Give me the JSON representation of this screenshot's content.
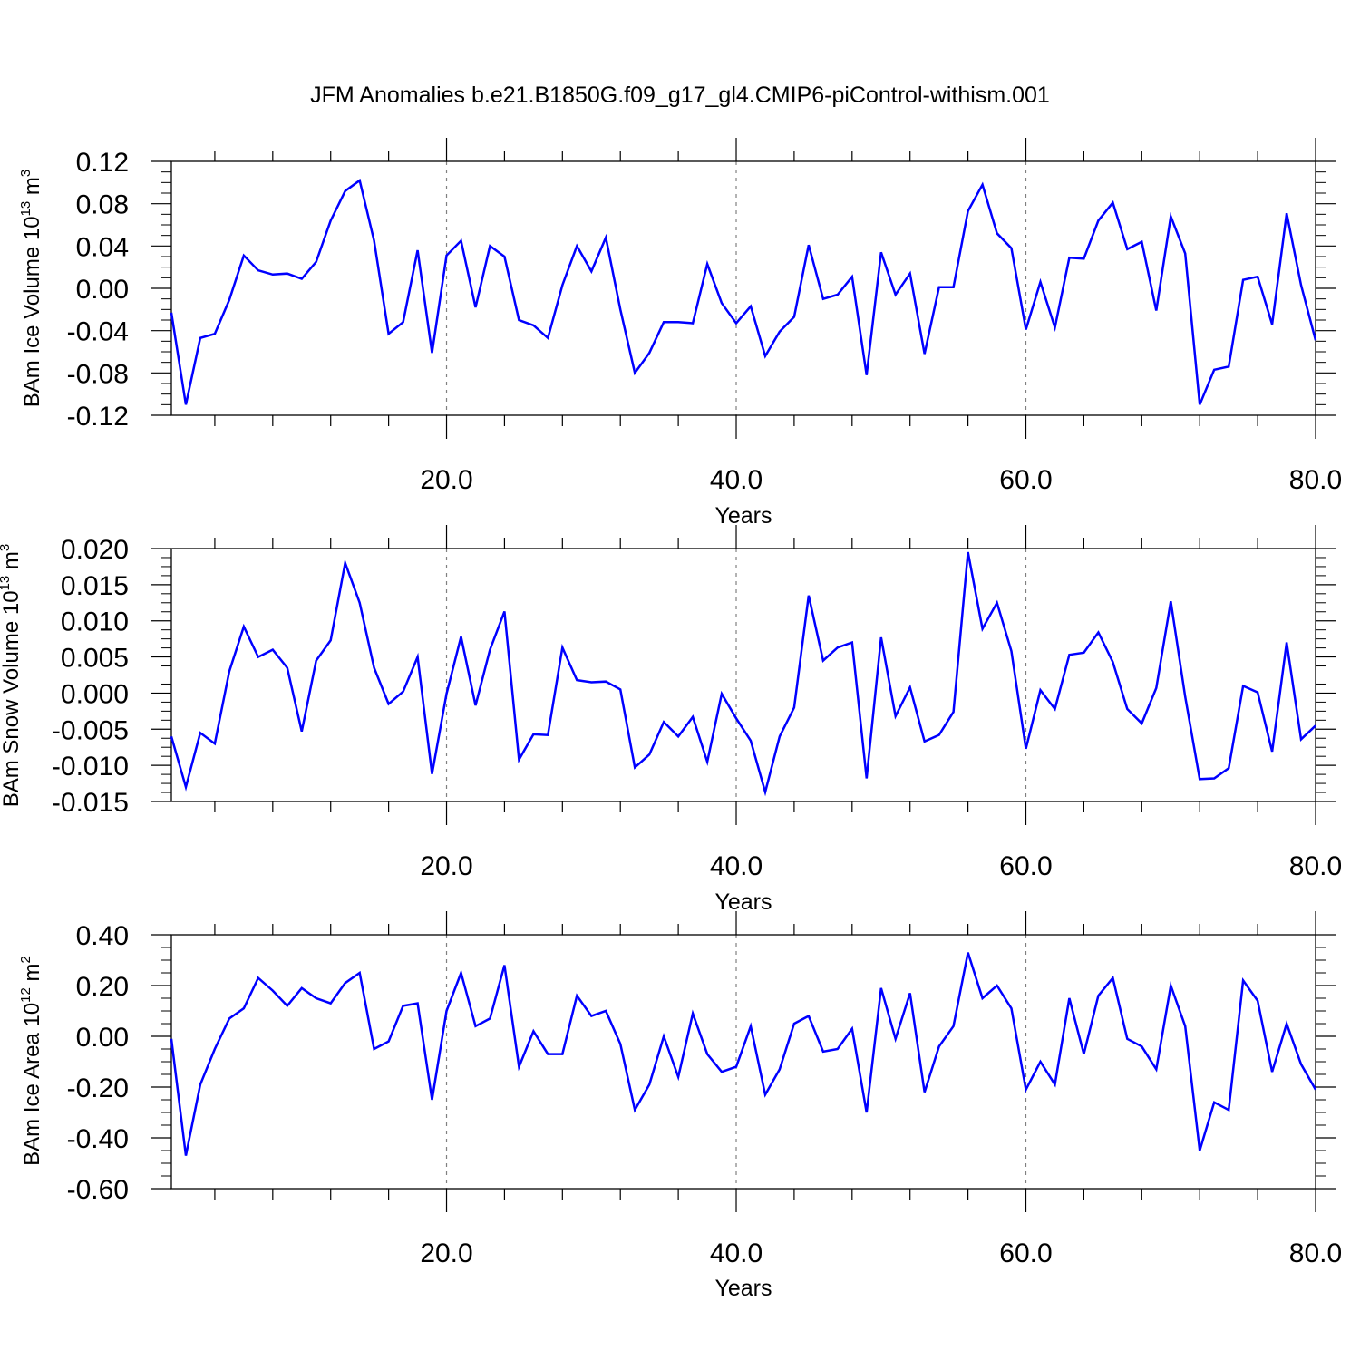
{
  "figure": {
    "title": "JFM Anomalies b.e21.B1850G.f09_g17_gl4.CMIP6-piControl-withism.001"
  },
  "style": {
    "line_color": "#0000ff",
    "axis_color": "#000000",
    "grid_color": "#808080"
  },
  "chart_data": [
    {
      "type": "line",
      "xlabel": "Years",
      "ylabel": {
        "prefix": "BAm Ice Volume 10",
        "exponent": "13",
        "unit": " m",
        "unit_exponent": "3"
      },
      "xlim": [
        1,
        80
      ],
      "ylim": [
        -0.12,
        0.12
      ],
      "xticks": [
        20,
        40,
        60,
        80
      ],
      "xtick_labels": [
        "20.0",
        "40.0",
        "60.0",
        "80.0"
      ],
      "yticks": [
        -0.12,
        -0.08,
        -0.04,
        0,
        0.04,
        0.08,
        0.12
      ],
      "ytick_labels": [
        "-0.12",
        "-0.08",
        "-0.04",
        "0.00",
        "0.04",
        "0.08",
        "0.12"
      ],
      "grid": "dashed vertical lines at major x ticks",
      "series": [
        {
          "x": [
            1,
            2,
            3,
            4,
            5,
            6,
            7,
            8,
            9,
            10,
            11,
            12,
            13,
            14,
            15,
            16,
            17,
            18,
            19,
            20,
            21,
            22,
            23,
            24,
            25,
            26,
            27,
            28,
            29,
            30,
            31,
            32,
            33,
            34,
            35,
            36,
            37,
            38,
            39,
            40,
            41,
            42,
            43,
            44,
            45,
            46,
            47,
            48,
            49,
            50,
            51,
            52,
            53,
            54,
            55,
            56,
            57,
            58,
            59,
            60,
            61,
            62,
            63,
            64,
            65,
            66,
            67,
            68,
            69,
            70,
            71,
            72,
            73,
            74,
            75,
            76,
            77,
            78,
            79,
            80
          ],
          "y": [
            -0.023,
            -0.11,
            -0.047,
            -0.043,
            -0.011,
            0.031,
            0.017,
            0.013,
            0.014,
            0.009,
            0.025,
            0.064,
            0.092,
            0.102,
            0.045,
            -0.043,
            -0.032,
            0.036,
            -0.061,
            0.031,
            0.045,
            -0.018,
            0.04,
            0.03,
            -0.03,
            -0.035,
            -0.047,
            0.003,
            0.04,
            0.016,
            0.048,
            -0.02,
            -0.08,
            -0.061,
            -0.032,
            -0.032,
            -0.033,
            0.023,
            -0.014,
            -0.033,
            -0.017,
            -0.064,
            -0.041,
            -0.027,
            0.041,
            -0.01,
            -0.006,
            0.011,
            -0.082,
            0.034,
            -0.006,
            0.014,
            -0.062,
            0.001,
            0.001,
            0.073,
            0.098,
            0.052,
            0.038,
            -0.039,
            0.006,
            -0.037,
            0.029,
            0.028,
            0.064,
            0.081,
            0.037,
            0.044,
            -0.021,
            0.068,
            0.033,
            -0.11,
            -0.077,
            -0.074,
            0.008,
            0.011,
            -0.034,
            0.071,
            0.003,
            -0.049
          ]
        }
      ]
    },
    {
      "type": "line",
      "xlabel": "Years",
      "ylabel": {
        "prefix": "BAm Snow Volume 10",
        "exponent": "13",
        "unit": " m",
        "unit_exponent": "3"
      },
      "xlim": [
        1,
        80
      ],
      "ylim": [
        -0.015,
        0.02
      ],
      "xticks": [
        20,
        40,
        60,
        80
      ],
      "xtick_labels": [
        "20.0",
        "40.0",
        "60.0",
        "80.0"
      ],
      "yticks": [
        -0.015,
        -0.01,
        -0.005,
        0,
        0.005,
        0.01,
        0.015,
        0.02
      ],
      "ytick_labels": [
        "-0.015",
        "-0.010",
        "-0.005",
        "0.000",
        "0.005",
        "0.010",
        "0.015",
        "0.020"
      ],
      "grid": "dashed vertical lines at major x ticks",
      "series": [
        {
          "x": [
            1,
            2,
            3,
            4,
            5,
            6,
            7,
            8,
            9,
            10,
            11,
            12,
            13,
            14,
            15,
            16,
            17,
            18,
            19,
            20,
            21,
            22,
            23,
            24,
            25,
            26,
            27,
            28,
            29,
            30,
            31,
            32,
            33,
            34,
            35,
            36,
            37,
            38,
            39,
            40,
            41,
            42,
            43,
            44,
            45,
            46,
            47,
            48,
            49,
            50,
            51,
            52,
            53,
            54,
            55,
            56,
            57,
            58,
            59,
            60,
            61,
            62,
            63,
            64,
            65,
            66,
            67,
            68,
            69,
            70,
            71,
            72,
            73,
            74,
            75,
            76,
            77,
            78,
            79,
            80
          ],
          "y": [
            -0.006,
            -0.013,
            -0.0055,
            -0.007,
            0.003,
            0.0092,
            0.005,
            0.006,
            0.0035,
            -0.0053,
            0.0045,
            0.0073,
            0.018,
            0.0125,
            0.0035,
            -0.0015,
            0.0002,
            0.005,
            -0.0112,
            -0.0001,
            0.0078,
            -0.0017,
            0.006,
            0.0113,
            -0.0092,
            -0.0057,
            -0.0058,
            0.0063,
            0.0018,
            0.0015,
            0.0016,
            0.0005,
            -0.0103,
            -0.0085,
            -0.004,
            -0.006,
            -0.0033,
            -0.0095,
            -0.0001,
            -0.0035,
            -0.0066,
            -0.0137,
            -0.006,
            -0.002,
            0.0135,
            0.0045,
            0.0063,
            0.007,
            -0.0118,
            0.0077,
            -0.0032,
            0.0008,
            -0.0067,
            -0.0058,
            -0.0026,
            0.0195,
            0.0089,
            0.0125,
            0.0058,
            -0.0077,
            0.0004,
            -0.0022,
            0.0053,
            0.0056,
            0.0084,
            0.0043,
            -0.0022,
            -0.0042,
            0.0007,
            0.0127,
            -0.0005,
            -0.0119,
            -0.0118,
            -0.0104,
            0.001,
            0.0001,
            -0.0081,
            0.007,
            -0.0064,
            -0.0045
          ]
        }
      ]
    },
    {
      "type": "line",
      "xlabel": "Years",
      "ylabel": {
        "prefix": "BAm Ice Area 10",
        "exponent": "12",
        "unit": " m",
        "unit_exponent": "2"
      },
      "xlim": [
        1,
        80
      ],
      "ylim": [
        -0.6,
        0.4
      ],
      "xticks": [
        20,
        40,
        60,
        80
      ],
      "xtick_labels": [
        "20.0",
        "40.0",
        "60.0",
        "80.0"
      ],
      "yticks": [
        -0.6,
        -0.4,
        -0.2,
        0,
        0.2,
        0.4
      ],
      "ytick_labels": [
        "-0.60",
        "-0.40",
        "-0.20",
        "0.00",
        "0.20",
        "0.40"
      ],
      "grid": "dashed vertical lines at major x ticks",
      "series": [
        {
          "x": [
            1,
            2,
            3,
            4,
            5,
            6,
            7,
            8,
            9,
            10,
            11,
            12,
            13,
            14,
            15,
            16,
            17,
            18,
            19,
            20,
            21,
            22,
            23,
            24,
            25,
            26,
            27,
            28,
            29,
            30,
            31,
            32,
            33,
            34,
            35,
            36,
            37,
            38,
            39,
            40,
            41,
            42,
            43,
            44,
            45,
            46,
            47,
            48,
            49,
            50,
            51,
            52,
            53,
            54,
            55,
            56,
            57,
            58,
            59,
            60,
            61,
            62,
            63,
            64,
            65,
            66,
            67,
            68,
            69,
            70,
            71,
            72,
            73,
            74,
            75,
            76,
            77,
            78,
            79,
            80
          ],
          "y": [
            -0.01,
            -0.47,
            -0.19,
            -0.05,
            0.07,
            0.11,
            0.23,
            0.18,
            0.12,
            0.19,
            0.15,
            0.13,
            0.21,
            0.25,
            -0.05,
            -0.02,
            0.12,
            0.13,
            -0.25,
            0.1,
            0.25,
            0.04,
            0.07,
            0.28,
            -0.12,
            0.02,
            -0.07,
            -0.07,
            0.16,
            0.08,
            0.1,
            -0.03,
            -0.29,
            -0.19,
            0.0,
            -0.16,
            0.09,
            -0.07,
            -0.14,
            -0.12,
            0.04,
            -0.23,
            -0.13,
            0.05,
            0.08,
            -0.06,
            -0.05,
            0.03,
            -0.3,
            0.19,
            -0.01,
            0.17,
            -0.22,
            -0.04,
            0.04,
            0.33,
            0.15,
            0.2,
            0.11,
            -0.21,
            -0.1,
            -0.19,
            0.15,
            -0.07,
            0.16,
            0.23,
            -0.01,
            -0.04,
            -0.13,
            0.2,
            0.04,
            -0.45,
            -0.26,
            -0.29,
            0.22,
            0.14,
            -0.14,
            0.05,
            -0.11,
            -0.21
          ]
        }
      ]
    }
  ]
}
